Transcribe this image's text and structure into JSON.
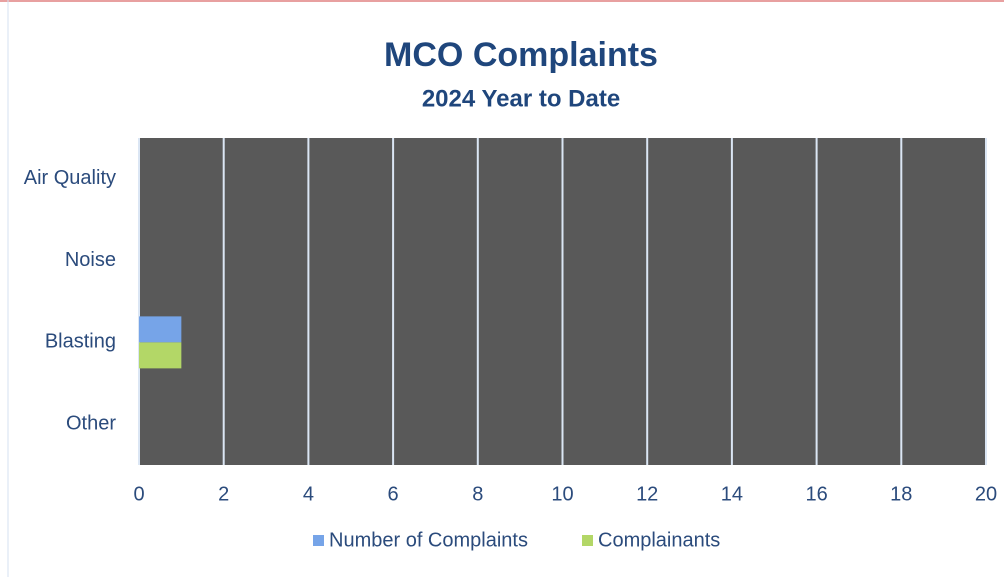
{
  "chart_data": {
    "type": "bar",
    "orientation": "horizontal",
    "title": "MCO Complaints",
    "subtitle": "2024 Year to Date",
    "categories": [
      "Air Quality",
      "Noise",
      "Blasting",
      "Other"
    ],
    "series": [
      {
        "name": "Number of Complaints",
        "color": "#76a4e8",
        "values": [
          0,
          0,
          1,
          0
        ]
      },
      {
        "name": "Complainants",
        "color": "#b3d767",
        "values": [
          0,
          0,
          1,
          0
        ]
      }
    ],
    "xlim": [
      0,
      20
    ],
    "xticks": [
      0,
      2,
      4,
      6,
      8,
      10,
      12,
      14,
      16,
      18,
      20
    ],
    "grid": true,
    "legend": "bottom",
    "plot_background": "#595959"
  }
}
